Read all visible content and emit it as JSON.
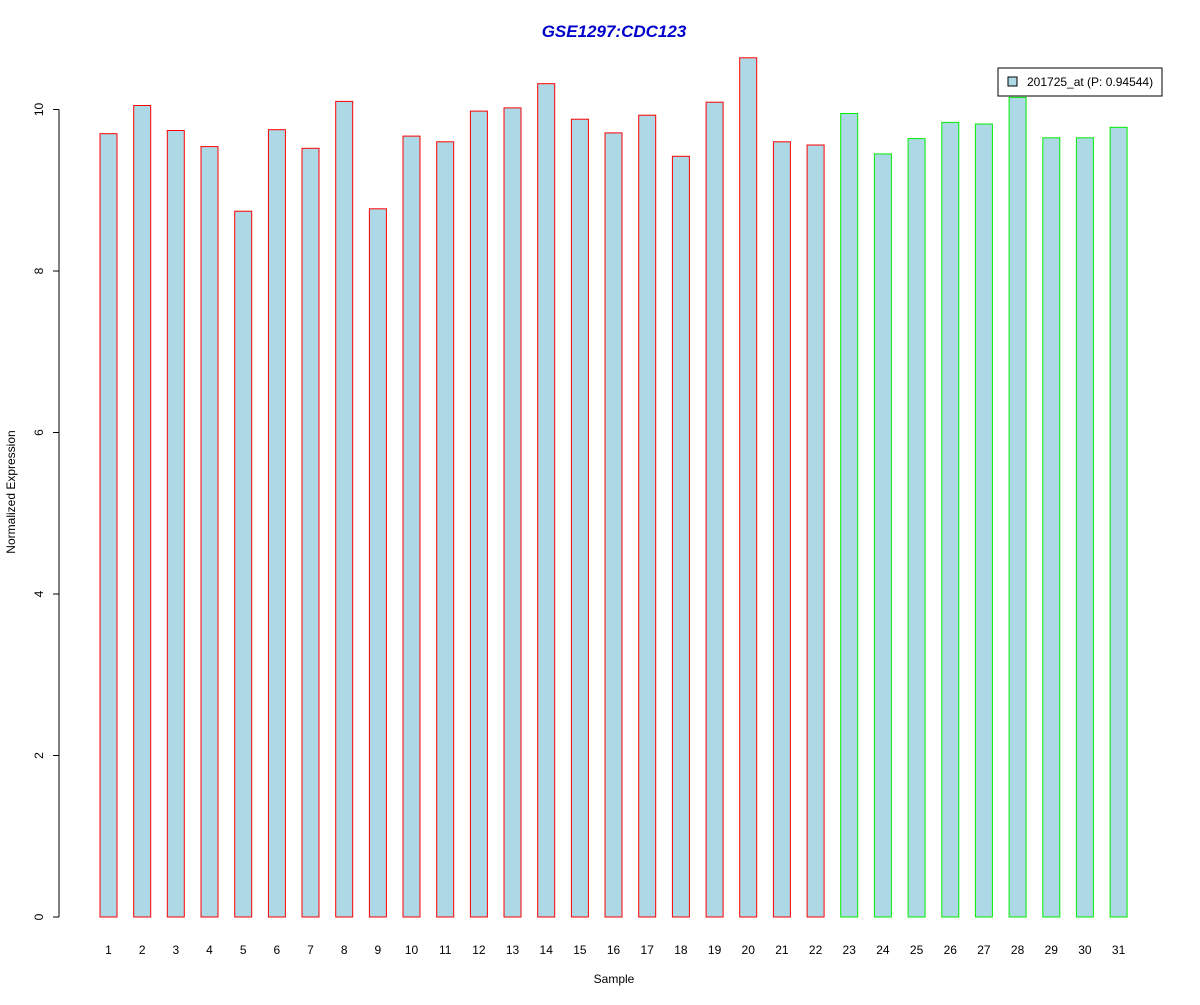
{
  "chart_data": {
    "type": "bar",
    "title": "GSE1297:CDC123",
    "title_color": "#0000CD",
    "xlabel": "Sample",
    "ylabel": "Normalized Expression",
    "ylim": [
      0,
      10.6
    ],
    "y_ticks": [
      "0",
      "2",
      "4",
      "6",
      "8",
      "10"
    ],
    "y_tick_values": [
      0,
      2,
      4,
      6,
      8,
      10
    ],
    "categories": [
      "1",
      "2",
      "3",
      "4",
      "5",
      "6",
      "7",
      "8",
      "9",
      "10",
      "11",
      "12",
      "13",
      "14",
      "15",
      "16",
      "17",
      "18",
      "19",
      "20",
      "21",
      "22",
      "23",
      "24",
      "25",
      "26",
      "27",
      "28",
      "29",
      "30",
      "31"
    ],
    "values": [
      9.7,
      10.05,
      9.74,
      9.54,
      8.74,
      9.75,
      9.52,
      10.1,
      8.77,
      9.67,
      9.6,
      9.98,
      10.02,
      10.32,
      9.88,
      9.71,
      9.93,
      9.42,
      10.09,
      10.64,
      9.6,
      9.56,
      9.95,
      9.45,
      9.64,
      9.84,
      9.82,
      10.15,
      9.65,
      9.65,
      9.78
    ],
    "bar_fill": "#ADD8E6",
    "group_colors": [
      "#FF0000",
      "#FF0000",
      "#FF0000",
      "#FF0000",
      "#FF0000",
      "#FF0000",
      "#FF0000",
      "#FF0000",
      "#FF0000",
      "#FF0000",
      "#FF0000",
      "#FF0000",
      "#FF0000",
      "#FF0000",
      "#FF0000",
      "#FF0000",
      "#FF0000",
      "#FF0000",
      "#FF0000",
      "#FF0000",
      "#FF0000",
      "#FF0000",
      "#00EE00",
      "#00EE00",
      "#00EE00",
      "#00EE00",
      "#00EE00",
      "#00EE00",
      "#00EE00",
      "#00EE00",
      "#00EE00"
    ],
    "legend": {
      "label": "201725_at (P: 0.94544)",
      "placement": "top-right"
    },
    "grid": false
  }
}
